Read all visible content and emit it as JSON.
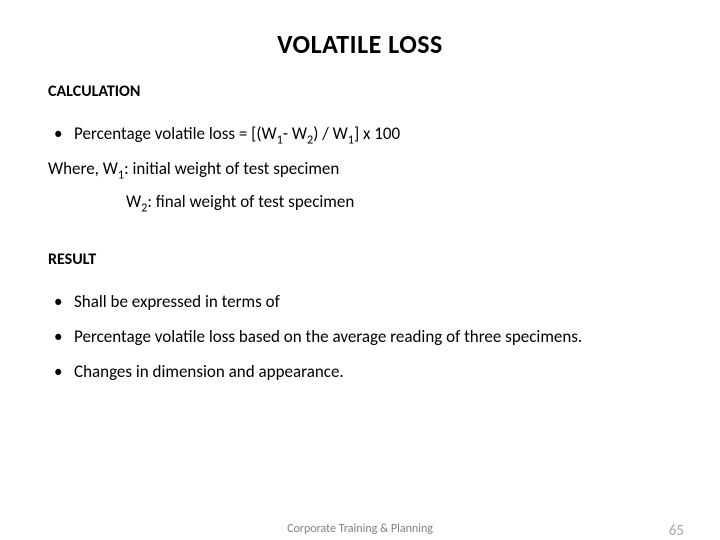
{
  "title": "VOLATILE LOSS",
  "sections": {
    "calc": {
      "heading": "CALCULATION",
      "formula_prefix": "Percentage volatile loss = [(W",
      "formula_sub1": "1",
      "formula_mid1": "- W",
      "formula_sub2": "2",
      "formula_mid2": ") / W",
      "formula_sub3": "1",
      "formula_suffix": "] x 100",
      "where_prefix": "Where, W",
      "where_sub1": "1",
      "where_text1": ": initial weight of test specimen",
      "where2_prefix": "W",
      "where2_sub": "2",
      "where2_text": ": final weight of test specimen"
    },
    "result": {
      "heading": "RESULT",
      "items": [
        "Shall be expressed in terms of",
        "Percentage volatile loss based on the average reading of three specimens.",
        "Changes in dimension and appearance."
      ]
    }
  },
  "footer": {
    "center": "Corporate Training & Planning",
    "page": "65"
  },
  "style": {
    "bullet_char": "•"
  }
}
